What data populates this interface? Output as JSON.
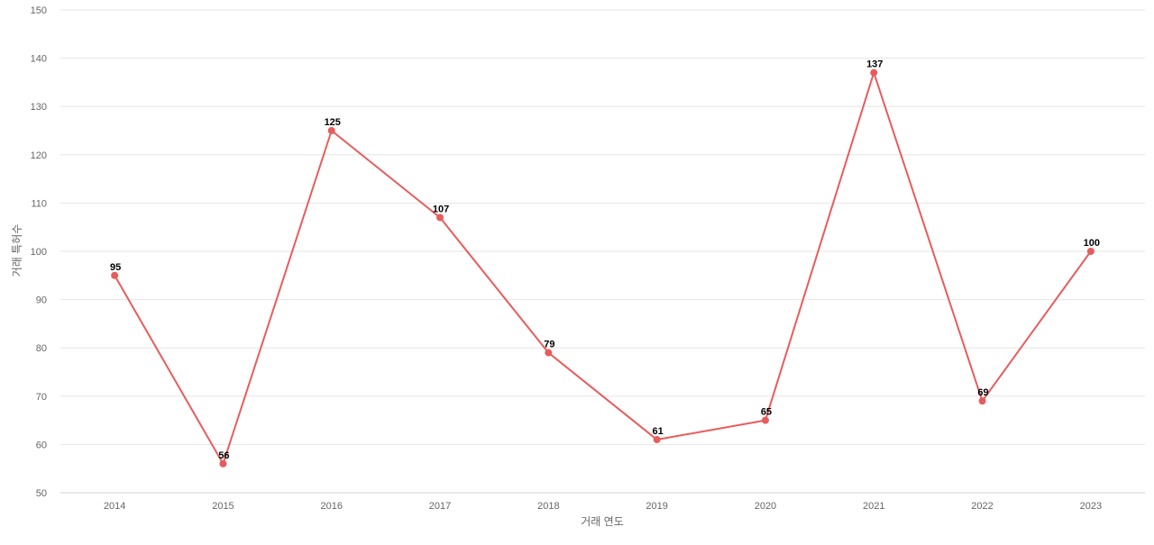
{
  "chart_data": {
    "type": "line",
    "title": "",
    "xlabel": "거래 연도",
    "ylabel": "거래 특허수",
    "categories": [
      "2014",
      "2015",
      "2016",
      "2017",
      "2018",
      "2019",
      "2020",
      "2021",
      "2022",
      "2023"
    ],
    "series": [
      {
        "values": [
          95,
          56,
          125,
          107,
          79,
          61,
          65,
          137,
          69,
          100
        ],
        "color": "#e85c5c"
      }
    ],
    "ylim": [
      50,
      150
    ],
    "yticks": [
      "50",
      "60",
      "70",
      "80",
      "90",
      "100",
      "110",
      "120",
      "130",
      "140",
      "150"
    ],
    "grid": true,
    "legend": "none",
    "data_labels": true
  }
}
